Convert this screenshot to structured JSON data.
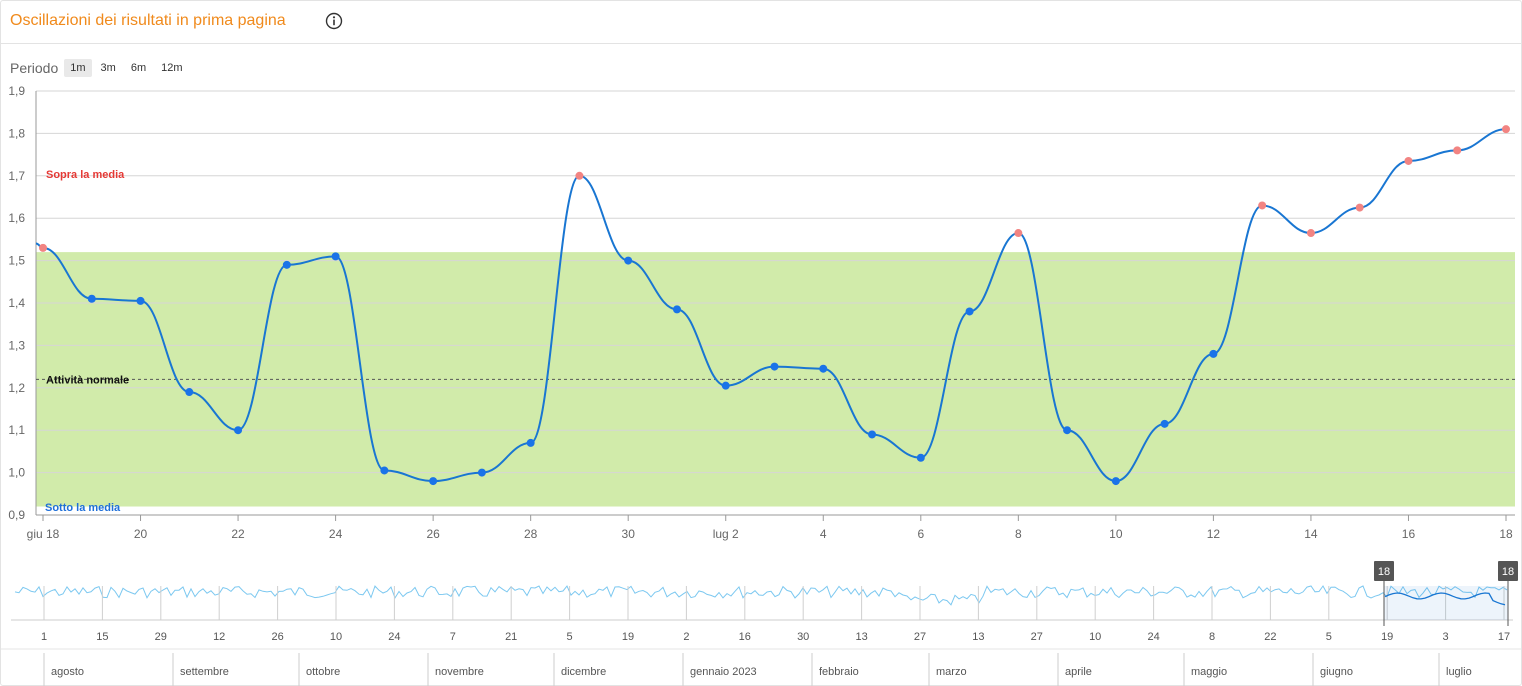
{
  "header": {
    "title": "Oscillazioni dei risultati in prima pagina"
  },
  "period": {
    "label": "Periodo",
    "options": [
      "1m",
      "3m",
      "6m",
      "12m"
    ],
    "selected": "1m"
  },
  "colors": {
    "title": "#f08a1c",
    "line": "#1976d2",
    "point_normal": "#1a73e8",
    "point_above": "#f28482",
    "band": "#d1ebaa",
    "above_label": "#e53935",
    "below_label": "#1e6fd9",
    "navigator_line": "#7cc8f0"
  },
  "chart_data": {
    "type": "line",
    "x": [
      "giu 18",
      "giu 19",
      "giu 20",
      "giu 21",
      "giu 22",
      "giu 23",
      "giu 24",
      "giu 25",
      "giu 26",
      "giu 27",
      "giu 28",
      "giu 29",
      "giu 30",
      "lug 1",
      "lug 2",
      "lug 3",
      "lug 4",
      "lug 5",
      "lug 6",
      "lug 7",
      "lug 8",
      "lug 9",
      "lug 10",
      "lug 11",
      "lug 12",
      "lug 13",
      "lug 14",
      "lug 15",
      "lug 16",
      "lug 17",
      "lug 18"
    ],
    "series": [
      {
        "values": [
          1.53,
          1.41,
          1.405,
          1.19,
          1.1,
          1.49,
          1.51,
          1.005,
          0.98,
          1.0,
          1.07,
          1.7,
          1.5,
          1.385,
          1.205,
          1.25,
          1.245,
          1.09,
          1.035,
          1.38,
          1.565,
          1.1,
          0.98,
          1.115,
          1.28,
          1.63,
          1.565,
          1.625,
          1.735,
          1.76,
          1.81
        ]
      }
    ],
    "ylim": [
      0.9,
      1.9
    ],
    "y_ticks": [
      "0,9",
      "1,0",
      "1,1",
      "1,2",
      "1,3",
      "1,4",
      "1,5",
      "1,6",
      "1,7",
      "1,8",
      "1,9"
    ],
    "x_tick_labels": [
      "giu 18",
      "20",
      "22",
      "24",
      "26",
      "28",
      "30",
      "lug 2",
      "4",
      "6",
      "8",
      "10",
      "12",
      "14",
      "16",
      "18"
    ],
    "band": {
      "from": 0.92,
      "to": 1.52
    },
    "normal_line": 1.22,
    "annotations": {
      "above": "Sopra la media",
      "normal": "Attività normale",
      "below": "Sotto la media"
    },
    "grid": true
  },
  "navigator": {
    "day_ticks": [
      "1",
      "15",
      "29",
      "12",
      "26",
      "10",
      "24",
      "7",
      "21",
      "5",
      "19",
      "2",
      "16",
      "30",
      "13",
      "27",
      "13",
      "27",
      "10",
      "24",
      "8",
      "22",
      "5",
      "19",
      "3",
      "17"
    ],
    "months": [
      "agosto",
      "settembre",
      "ottobre",
      "novembre",
      "dicembre",
      "gennaio 2023",
      "febbraio",
      "marzo",
      "aprile",
      "maggio",
      "giugno",
      "luglio"
    ],
    "handle_left": "18",
    "handle_right": "18"
  }
}
